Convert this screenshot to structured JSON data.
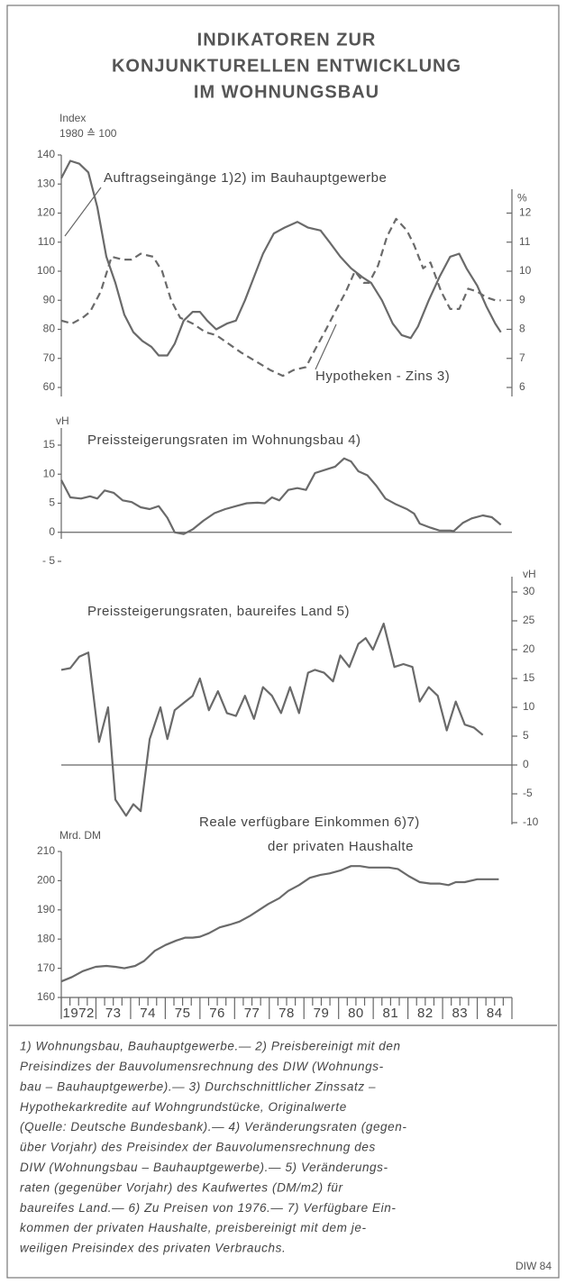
{
  "title": [
    "INDIKATOREN ZUR",
    "KONJUNKTURELLEN ENTWICKLUNG",
    "IM WOHNUNGSBAU"
  ],
  "chart_data": [
    {
      "type": "line",
      "ylabel": [
        "Index",
        "1980 ≙ 100"
      ],
      "y2label": "%",
      "xlim": [
        1972,
        1985
      ],
      "ylim": [
        60,
        140
      ],
      "yticks": [
        60,
        70,
        80,
        90,
        100,
        110,
        120,
        130,
        140
      ],
      "y2lim": [
        6,
        14
      ],
      "y2ticks": [
        6,
        7,
        8,
        9,
        10,
        11,
        12
      ],
      "series": [
        {
          "name": "Auftragseingänge 1)2) im Bauhauptgewerbe",
          "color": "#6a6a6a",
          "dash": false,
          "x": [
            1972.0,
            1972.26,
            1972.52,
            1972.78,
            1973.04,
            1973.3,
            1973.56,
            1973.82,
            1974.08,
            1974.34,
            1974.6,
            1974.81,
            1975.06,
            1975.27,
            1975.53,
            1975.79,
            1976.0,
            1976.21,
            1976.47,
            1976.78,
            1977.04,
            1977.3,
            1977.56,
            1977.82,
            1978.13,
            1978.44,
            1978.81,
            1979.12,
            1979.48,
            1979.74,
            1980.05,
            1980.36,
            1980.68,
            1980.94,
            1981.25,
            1981.56,
            1981.82,
            1982.08,
            1982.29,
            1982.6,
            1982.91,
            1983.22,
            1983.48,
            1983.69,
            1984.0,
            1984.26,
            1984.52,
            1984.68
          ],
          "values": [
            132,
            138,
            137,
            134,
            122,
            105,
            96,
            85,
            79,
            76,
            74,
            71,
            71,
            75,
            83,
            86,
            86,
            83,
            80,
            82,
            83,
            90,
            98,
            106,
            113,
            115,
            117,
            115,
            114,
            110,
            105,
            101,
            98,
            96,
            90,
            82,
            78,
            77,
            81,
            90,
            98,
            105,
            106,
            101,
            95,
            88,
            82,
            79
          ]
        },
        {
          "name": "Hypotheken - Zins 3)",
          "color": "#6a6a6a",
          "dash": true,
          "axis": "y2",
          "x": [
            1972.0,
            1972.31,
            1972.62,
            1972.83,
            1973.14,
            1973.45,
            1973.77,
            1974.03,
            1974.29,
            1974.65,
            1974.91,
            1975.17,
            1975.43,
            1975.79,
            1976.16,
            1976.47,
            1976.83,
            1977.19,
            1977.61,
            1978.03,
            1978.39,
            1978.7,
            1979.06,
            1979.32,
            1979.64,
            1979.9,
            1980.21,
            1980.47,
            1980.73,
            1980.88,
            1981.14,
            1981.4,
            1981.66,
            1981.97,
            1982.18,
            1982.44,
            1982.65,
            1982.96,
            1983.22,
            1983.48,
            1983.74,
            1984.0,
            1984.26,
            1984.52,
            1984.68
          ],
          "values": [
            8.3,
            8.2,
            8.4,
            8.6,
            9.3,
            10.5,
            10.4,
            10.4,
            10.6,
            10.5,
            10.0,
            9.0,
            8.4,
            8.2,
            7.9,
            7.8,
            7.5,
            7.2,
            6.9,
            6.6,
            6.4,
            6.6,
            6.7,
            7.3,
            8.0,
            8.6,
            9.3,
            10.0,
            9.6,
            9.6,
            10.2,
            11.2,
            11.8,
            11.4,
            10.9,
            10.1,
            10.3,
            9.3,
            8.7,
            8.7,
            9.4,
            9.3,
            9.1,
            9.0,
            9.0
          ]
        }
      ]
    },
    {
      "type": "line",
      "title": [
        "Preissteigerungsraten im Wohnungsbau 4)"
      ],
      "ylabel": [
        "vH"
      ],
      "xlim": [
        1972,
        1985
      ],
      "ylim": [
        -5,
        15
      ],
      "yticks": [
        {
          "value": -5,
          "label": "- 5"
        },
        0,
        5,
        10,
        15
      ],
      "series": [
        {
          "color": "#6a6a6a",
          "dash": false,
          "x": [
            1972.0,
            1972.26,
            1972.57,
            1972.83,
            1973.04,
            1973.25,
            1973.51,
            1973.77,
            1974.03,
            1974.29,
            1974.55,
            1974.81,
            1975.06,
            1975.27,
            1975.53,
            1975.79,
            1976.1,
            1976.42,
            1976.73,
            1977.04,
            1977.35,
            1977.66,
            1977.87,
            1978.08,
            1978.29,
            1978.55,
            1978.81,
            1979.06,
            1979.32,
            1979.64,
            1979.9,
            1980.16,
            1980.36,
            1980.57,
            1980.83,
            1981.09,
            1981.35,
            1981.66,
            1981.97,
            1982.18,
            1982.34,
            1982.65,
            1982.91,
            1983.22,
            1983.32,
            1983.58,
            1983.84,
            1984.16,
            1984.42,
            1984.68
          ],
          "values": [
            9,
            6,
            5.8,
            6.2,
            5.8,
            7.2,
            6.8,
            5.5,
            5.2,
            4.3,
            4.0,
            4.5,
            2.5,
            0,
            -0.3,
            0.5,
            2,
            3.3,
            4,
            4.5,
            5,
            5.1,
            5,
            6,
            5.5,
            7.3,
            7.6,
            7.3,
            10.2,
            10.8,
            11.3,
            12.7,
            12.2,
            10.5,
            9.8,
            8,
            5.8,
            4.8,
            4.0,
            3.2,
            1.5,
            0.8,
            0.3,
            0.3,
            0.2,
            1.6,
            2.4,
            2.9,
            2.6,
            1.3
          ]
        }
      ]
    },
    {
      "type": "line",
      "title": [
        "Preissteigerungsraten, baureifes Land 5)"
      ],
      "ylabel": [
        "vH"
      ],
      "xlim": [
        1972,
        1985
      ],
      "ylim": [
        -10,
        30
      ],
      "yticks": [
        -10,
        -5,
        0,
        5,
        10,
        15,
        20,
        25,
        30
      ],
      "series": [
        {
          "color": "#6a6a6a",
          "dash": false,
          "x": [
            1972.0,
            1972.26,
            1972.52,
            1972.78,
            1973.09,
            1973.35,
            1973.56,
            1973.87,
            1974.08,
            1974.29,
            1974.55,
            1974.86,
            1975.06,
            1975.27,
            1975.58,
            1975.79,
            1976.0,
            1976.26,
            1976.52,
            1976.78,
            1977.04,
            1977.3,
            1977.56,
            1977.82,
            1978.08,
            1978.34,
            1978.6,
            1978.86,
            1979.12,
            1979.32,
            1979.58,
            1979.84,
            1980.05,
            1980.31,
            1980.57,
            1980.78,
            1980.99,
            1981.3,
            1981.61,
            1981.87,
            1982.13,
            1982.34,
            1982.6,
            1982.86,
            1983.12,
            1983.38,
            1983.64,
            1983.9,
            1984.16
          ],
          "values": [
            16.5,
            16.8,
            18.8,
            19.5,
            4,
            10,
            -6,
            -8.8,
            -6.8,
            -8,
            4.5,
            10,
            4.5,
            9.5,
            11,
            12,
            15,
            9.5,
            12.8,
            9,
            8.5,
            12,
            8,
            13.5,
            12,
            9,
            13.5,
            9,
            16,
            16.5,
            16,
            14.5,
            19,
            17,
            21,
            22,
            20,
            24.5,
            17,
            17.5,
            17,
            11,
            13.5,
            12,
            6,
            11,
            7,
            6.5,
            5.2
          ]
        }
      ]
    },
    {
      "type": "line",
      "title": [
        "Reale verfügbare Einkommen 6)7)",
        "der privaten Haushalte"
      ],
      "ylabel": [
        "Mrd. DM"
      ],
      "xlim": [
        1972,
        1985
      ],
      "ylim": [
        160,
        210
      ],
      "yticks": [
        160,
        170,
        180,
        190,
        200,
        210
      ],
      "xticks": [
        {
          "value": 1972,
          "label": "1972"
        },
        {
          "value": 1973,
          "label": "73"
        },
        {
          "value": 1974,
          "label": "74"
        },
        {
          "value": 1975,
          "label": "75"
        },
        {
          "value": 1976,
          "label": "76"
        },
        {
          "value": 1977,
          "label": "77"
        },
        {
          "value": 1978,
          "label": "78"
        },
        {
          "value": 1979,
          "label": "79"
        },
        {
          "value": 1980,
          "label": "80"
        },
        {
          "value": 1981,
          "label": "81"
        },
        {
          "value": 1982,
          "label": "82"
        },
        {
          "value": 1983,
          "label": "83"
        },
        {
          "value": 1984,
          "label": "84"
        }
      ],
      "series": [
        {
          "color": "#6a6a6a",
          "dash": false,
          "x": [
            1972.0,
            1972.31,
            1972.62,
            1972.99,
            1973.3,
            1973.56,
            1973.82,
            1974.13,
            1974.39,
            1974.7,
            1975.01,
            1975.32,
            1975.58,
            1975.79,
            1976.0,
            1976.26,
            1976.57,
            1976.88,
            1977.14,
            1977.45,
            1977.71,
            1977.97,
            1978.29,
            1978.55,
            1978.86,
            1979.17,
            1979.48,
            1979.74,
            1980.05,
            1980.36,
            1980.62,
            1980.88,
            1981.19,
            1981.45,
            1981.71,
            1982.03,
            1982.34,
            1982.65,
            1982.91,
            1983.17,
            1983.38,
            1983.64,
            1984.0,
            1984.26,
            1984.62
          ],
          "values": [
            165.5,
            167,
            169,
            170.5,
            170.8,
            170.5,
            170,
            170.8,
            172.5,
            176,
            178,
            179.5,
            180.5,
            180.5,
            180.8,
            182,
            184,
            185,
            186,
            188,
            190,
            192,
            194,
            196.5,
            198.5,
            201,
            202,
            202.5,
            203.5,
            205,
            205,
            204.5,
            204.5,
            204.5,
            204,
            201.5,
            199.5,
            199,
            199,
            198.5,
            199.5,
            199.5,
            200.5,
            200.5,
            200.5
          ]
        }
      ]
    }
  ],
  "footnotes": [
    "1) Wohnungsbau, Bauhauptgewerbe.— 2) Preisbereinigt mit den",
    "Preisindizes der Bauvolumensrechnung des DIW (Wohnungs-",
    "bau – Bauhauptgewerbe).— 3) Durchschnittlicher Zinssatz –",
    "Hypothekarkredite auf Wohngrundstücke, Originalwerte",
    "(Quelle: Deutsche Bundesbank).— 4) Veränderungsraten (gegen-",
    "über Vorjahr) des Preisindex der Bauvolumensrechnung des",
    "DIW (Wohnungsbau – Bauhauptgewerbe).— 5) Veränderungs-",
    "raten (gegenüber Vorjahr) des Kaufwertes (DM/m2) für",
    "baureifes Land.— 6) Zu Preisen von 1976.— 7) Verfügbare Ein-",
    "kommen der privaten Haushalte, preisbereinigt mit dem je-",
    "weiligen Preisindex des privaten Verbrauchs."
  ],
  "source": "DIW 84"
}
